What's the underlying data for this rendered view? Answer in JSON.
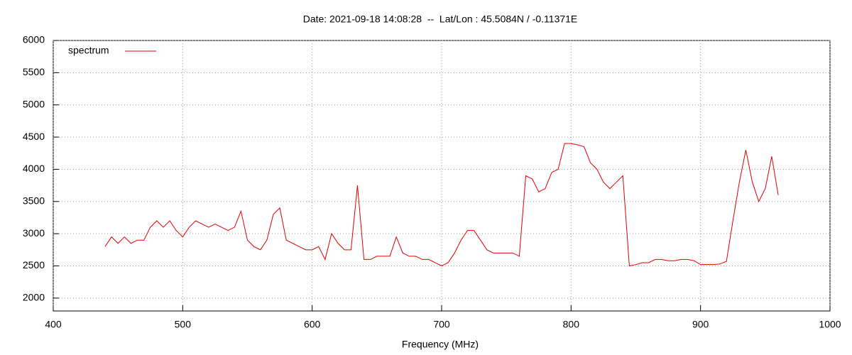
{
  "chart_data": {
    "type": "line",
    "title": "Date: 2021-09-18 14:08:28  --  Lat/Lon : 45.5084N / -0.11371E",
    "x_label": "Frequency (MHz)",
    "x": [
      440,
      445,
      450,
      455,
      460,
      465,
      470,
      475,
      480,
      485,
      490,
      495,
      500,
      505,
      510,
      515,
      520,
      525,
      530,
      535,
      540,
      545,
      550,
      555,
      560,
      565,
      570,
      575,
      580,
      585,
      590,
      595,
      600,
      605,
      610,
      615,
      620,
      625,
      630,
      635,
      640,
      645,
      650,
      655,
      660,
      665,
      670,
      675,
      680,
      685,
      690,
      695,
      700,
      705,
      710,
      715,
      720,
      725,
      730,
      735,
      740,
      745,
      750,
      755,
      760,
      765,
      770,
      775,
      780,
      785,
      790,
      795,
      800,
      805,
      810,
      815,
      820,
      825,
      830,
      835,
      840,
      845,
      850,
      855,
      860,
      865,
      870,
      875,
      880,
      885,
      890,
      895,
      900,
      905,
      910,
      915,
      920,
      925,
      930,
      935,
      940,
      945,
      950,
      955,
      960
    ],
    "series": [
      {
        "name": "spectrum",
        "color": "#dd0000",
        "values": [
          2800,
          2950,
          2850,
          2950,
          2850,
          2900,
          2900,
          3100,
          3200,
          3100,
          3200,
          3050,
          2950,
          3100,
          3200,
          3150,
          3100,
          3150,
          3100,
          3050,
          3100,
          3350,
          2900,
          2800,
          2750,
          2900,
          3300,
          3400,
          2900,
          2850,
          2800,
          2750,
          2750,
          2800,
          2600,
          3000,
          2850,
          2750,
          2750,
          3750,
          2600,
          2600,
          2650,
          2650,
          2650,
          2950,
          2700,
          2650,
          2650,
          2600,
          2600,
          2550,
          2500,
          2550,
          2700,
          2900,
          3050,
          3050,
          2900,
          2750,
          2700,
          2700,
          2700,
          2700,
          2650,
          3900,
          3850,
          3650,
          3700,
          3950,
          4000,
          4400,
          4400,
          4380,
          4350,
          4100,
          4000,
          3800,
          3700,
          3800,
          3900,
          2500,
          2520,
          2550,
          2550,
          2600,
          2600,
          2580,
          2580,
          2600,
          2600,
          2580,
          2520,
          2520,
          2520,
          2530,
          2570,
          3200,
          3800,
          4300,
          3800,
          3500,
          3700,
          4200,
          3600
        ]
      }
    ],
    "xlim": [
      400,
      1000
    ],
    "xticks": [
      400,
      500,
      600,
      700,
      800,
      900,
      1000
    ],
    "ylim": [
      1800,
      6000
    ],
    "yticks": [
      2000,
      2500,
      3000,
      3500,
      4000,
      4500,
      5000,
      5500,
      6000
    ],
    "grid": true,
    "legend": "top-left"
  }
}
